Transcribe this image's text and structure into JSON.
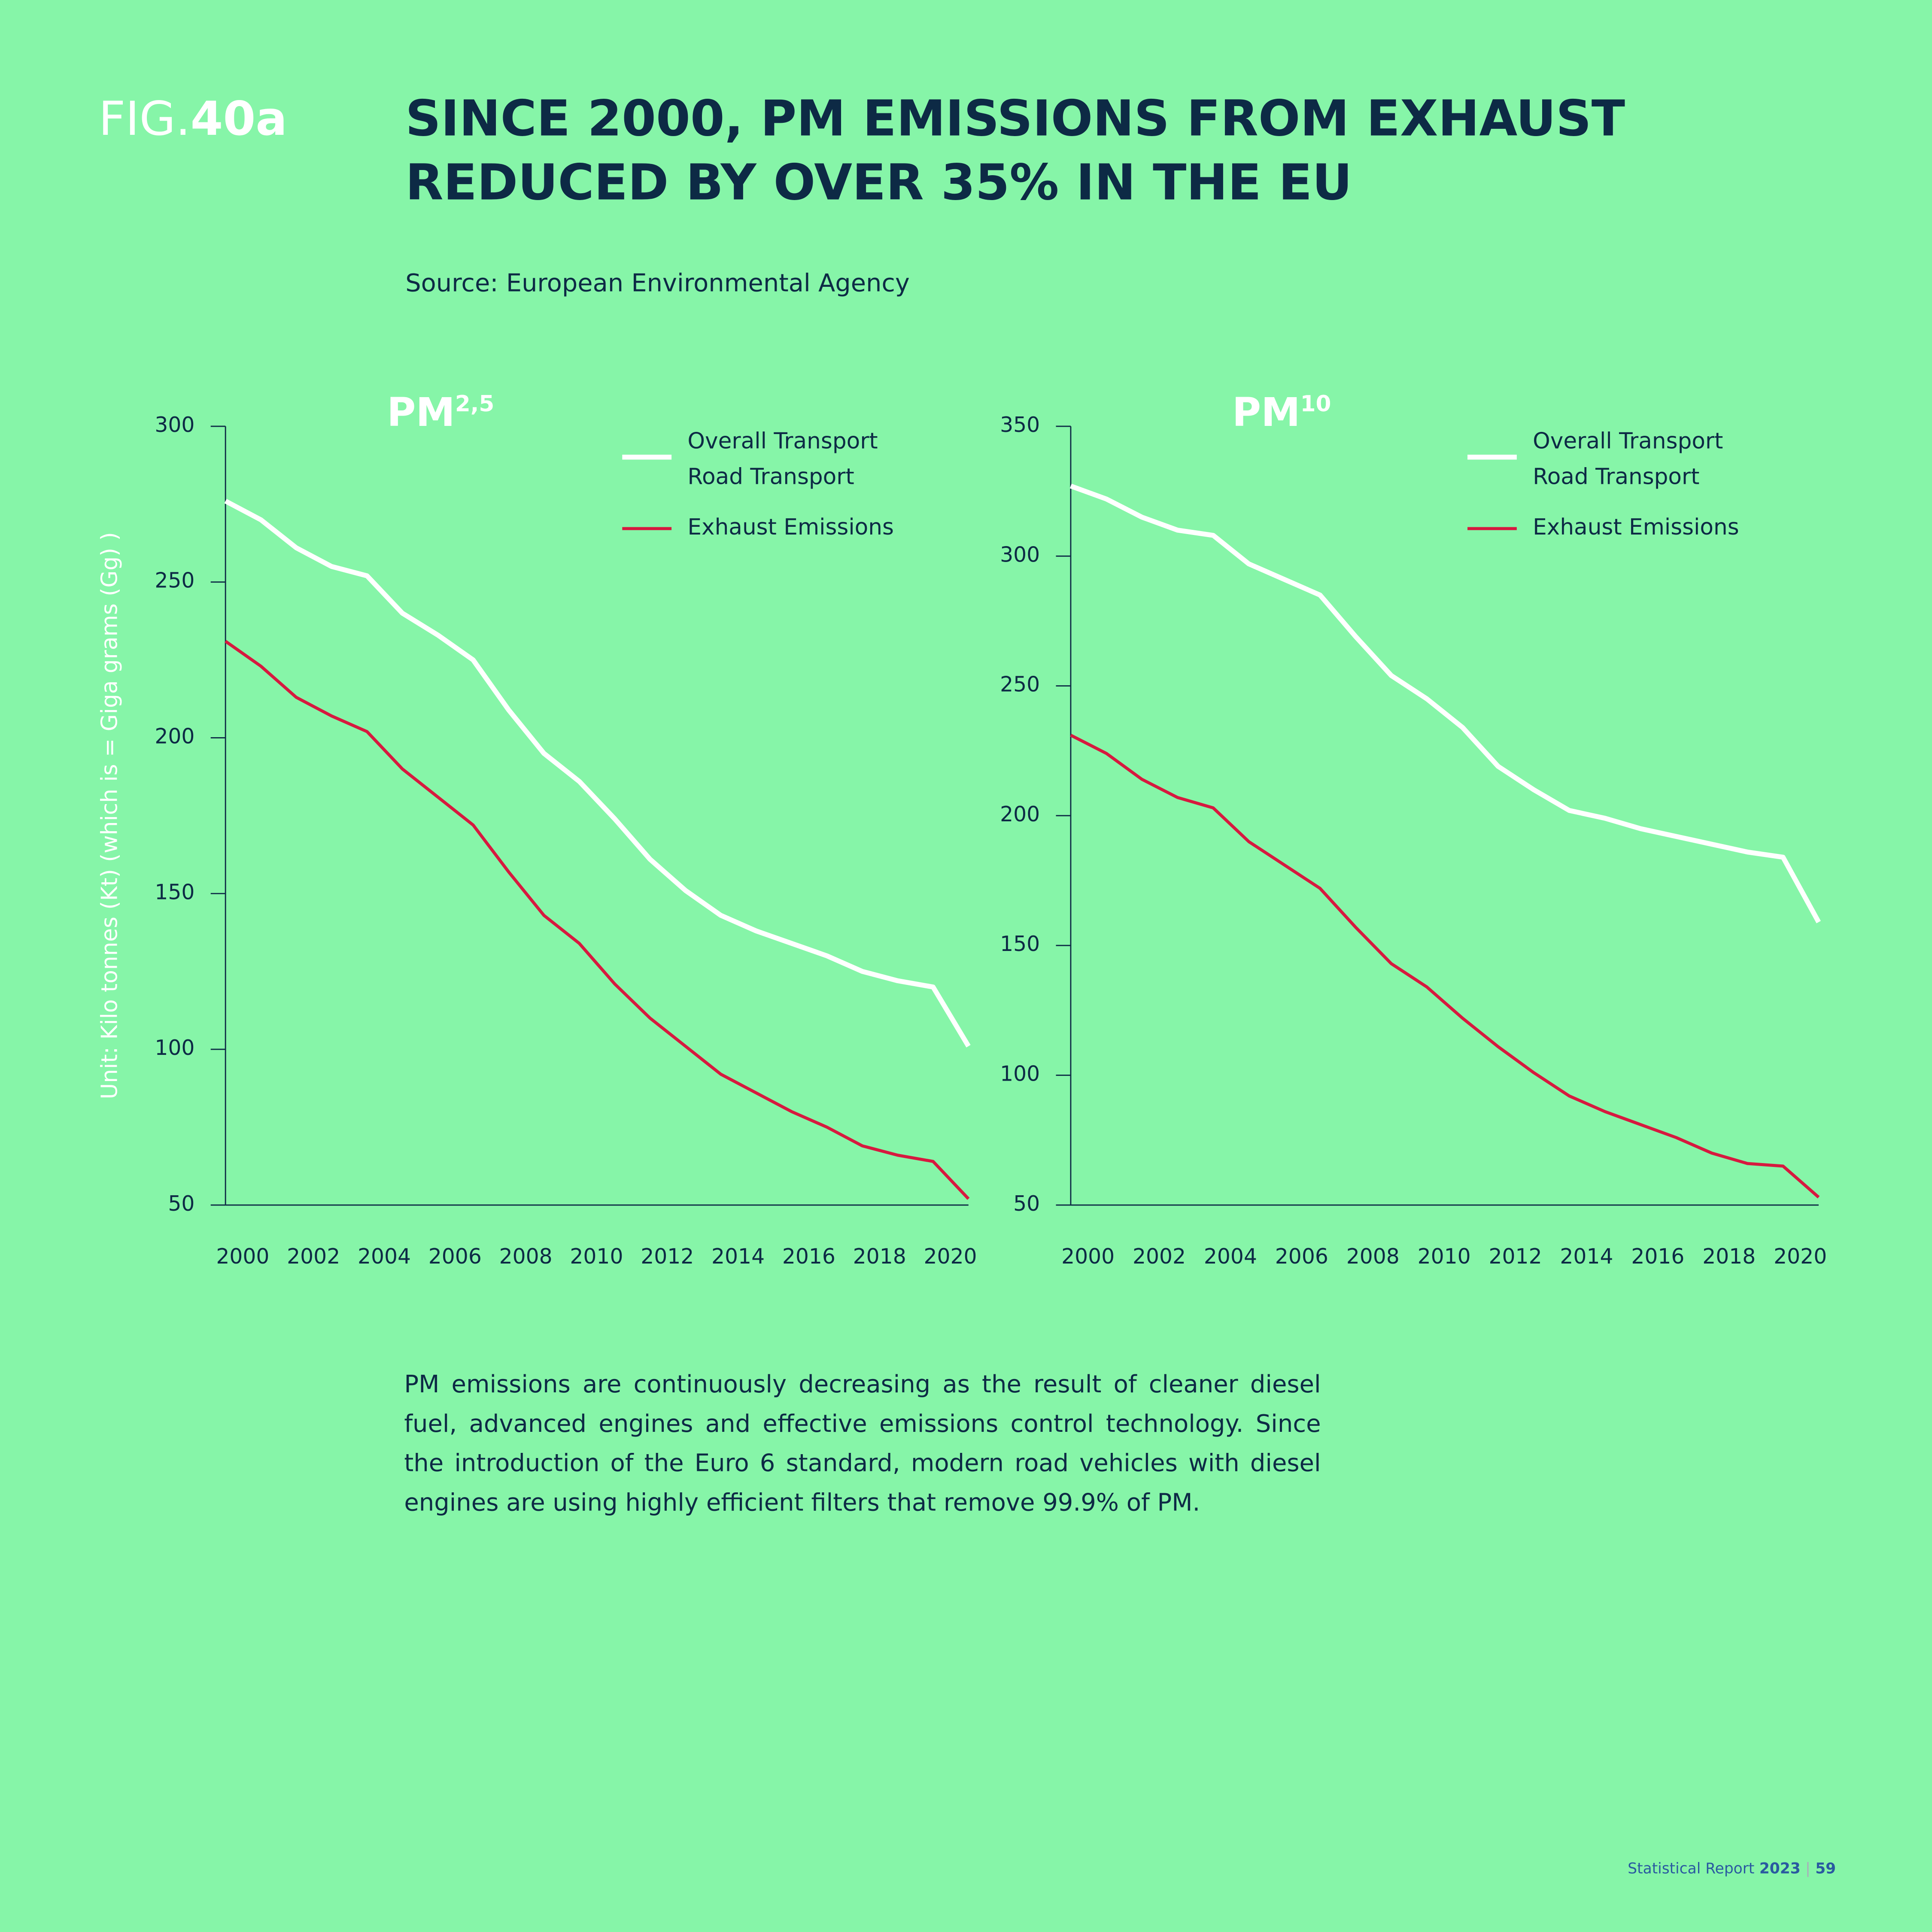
{
  "page": {
    "fig_prefix": "FIG.",
    "fig_number": "40a",
    "heading": [
      "SINCE 2000, PM EMISSIONS FROM EXHAUST",
      "REDUCED BY OVER 35% IN THE EU"
    ],
    "source": "Source: European Environmental Agency",
    "paragraph": "PM emissions are continuously decreasing as the result of cleaner diesel fuel, advanced engines and effective emissions control technology. Since the introduction of the Euro 6 standard, modern road vehicles with diesel engines are using highly efficient filters that remove 99.9% of PM.",
    "footer": {
      "label": "Statistical Report",
      "year": "2023",
      "page": "59"
    }
  },
  "chart_data": [
    {
      "type": "line",
      "title": "PM",
      "title_sup": "2,5",
      "ylabel": "Unit: Kilo tonnes (Kt) (which is = Giga grams (Gg) )",
      "x": [
        2000,
        2001,
        2002,
        2003,
        2004,
        2005,
        2006,
        2007,
        2008,
        2009,
        2010,
        2011,
        2012,
        2013,
        2014,
        2015,
        2016,
        2017,
        2018,
        2019,
        2020,
        2021
      ],
      "xlim": [
        2000,
        2021
      ],
      "xticks": [
        2000,
        2002,
        2004,
        2006,
        2008,
        2010,
        2012,
        2014,
        2016,
        2018,
        2020
      ],
      "ylim": [
        50,
        300
      ],
      "yticks": [
        50,
        100,
        150,
        200,
        250,
        300
      ],
      "series": [
        {
          "name": [
            "Overall Transport",
            "Road Transport"
          ],
          "color": "#ffffff",
          "values": [
            276,
            270,
            261,
            255,
            252,
            240,
            233,
            225,
            209,
            195,
            186,
            174,
            161,
            151,
            143,
            138,
            134,
            130,
            125,
            122,
            120,
            101
          ]
        },
        {
          "name": [
            "Exhaust Emissions"
          ],
          "color": "#d7193f",
          "values": [
            231,
            223,
            213,
            207,
            202,
            190,
            181,
            172,
            157,
            143,
            134,
            121,
            110,
            101,
            92,
            86,
            80,
            75,
            69,
            66,
            64,
            52
          ]
        }
      ]
    },
    {
      "type": "line",
      "title": "PM",
      "title_sup": "10",
      "x": [
        2000,
        2001,
        2002,
        2003,
        2004,
        2005,
        2006,
        2007,
        2008,
        2009,
        2010,
        2011,
        2012,
        2013,
        2014,
        2015,
        2016,
        2017,
        2018,
        2019,
        2020,
        2021
      ],
      "xlim": [
        2000,
        2021
      ],
      "xticks": [
        2000,
        2002,
        2004,
        2006,
        2008,
        2010,
        2012,
        2014,
        2016,
        2018,
        2020
      ],
      "ylim": [
        50,
        350
      ],
      "yticks": [
        50,
        100,
        150,
        200,
        250,
        300,
        350
      ],
      "series": [
        {
          "name": [
            "Overall Transport",
            "Road Transport"
          ],
          "color": "#ffffff",
          "values": [
            327,
            322,
            315,
            310,
            308,
            297,
            291,
            285,
            269,
            254,
            245,
            234,
            219,
            210,
            202,
            199,
            195,
            192,
            189,
            186,
            184,
            159
          ]
        },
        {
          "name": [
            "Exhaust Emissions"
          ],
          "color": "#d7193f",
          "values": [
            231,
            224,
            214,
            207,
            203,
            190,
            181,
            172,
            157,
            143,
            134,
            122,
            111,
            101,
            92,
            86,
            81,
            76,
            70,
            66,
            65,
            53
          ]
        }
      ]
    }
  ]
}
